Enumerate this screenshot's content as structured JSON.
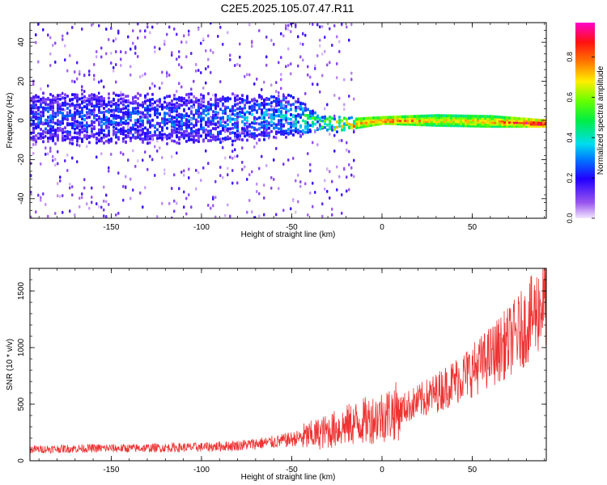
{
  "title": "C2E5.2025.105.07.47.R11",
  "chart_data": [
    {
      "type": "heatmap",
      "xlabel": "Height of straight line (km)",
      "ylabel": "Frequency (Hz)",
      "xlim": [
        -195,
        91
      ],
      "ylim": [
        -50,
        50
      ],
      "xticks": [
        -150,
        -100,
        -50,
        0,
        50
      ],
      "yticks": [
        -40,
        -20,
        0,
        20,
        40
      ],
      "colorbar": {
        "label": "Normalized spectral amplitude",
        "range": [
          0,
          0.97
        ],
        "ticks": [
          "0.0",
          "0.2",
          "0.4",
          "0.6",
          "0.8"
        ],
        "colormap": "rainbow (violet → blue → cyan → green → yellow → red → magenta)"
      },
      "description_profile": [
        {
          "height_km": -195,
          "center_hz": 1,
          "band_halfwidth_hz": 12,
          "amplitude": 0.25
        },
        {
          "height_km": -100,
          "center_hz": 1,
          "band_halfwidth_hz": 12,
          "amplitude": 0.28
        },
        {
          "height_km": -50,
          "center_hz": 2,
          "band_halfwidth_hz": 10,
          "amplitude": 0.35
        },
        {
          "height_km": -35,
          "center_hz": -1,
          "band_halfwidth_hz": 4,
          "amplitude": 0.55
        },
        {
          "height_km": -20,
          "center_hz": -2,
          "band_halfwidth_hz": 3,
          "amplitude": 0.7
        },
        {
          "height_km": 0,
          "center_hz": 0,
          "band_halfwidth_hz": 2,
          "amplitude": 0.85
        },
        {
          "height_km": 30,
          "center_hz": 0,
          "band_halfwidth_hz": 3,
          "amplitude": 0.7
        },
        {
          "height_km": 60,
          "center_hz": -0.5,
          "band_halfwidth_hz": 3,
          "amplitude": 0.75
        },
        {
          "height_km": 88,
          "center_hz": -1.5,
          "band_halfwidth_hz": 2,
          "amplitude": 0.95
        }
      ]
    },
    {
      "type": "line",
      "xlabel": "Height of straight line (km)",
      "ylabel": "SNR (10 * v/v)",
      "xlim": [
        -195,
        91
      ],
      "ylim": [
        0,
        1700
      ],
      "xticks": [
        -150,
        -100,
        -50,
        0,
        50
      ],
      "yticks": [
        0,
        500,
        1000,
        1500
      ],
      "series_color": "#ee3333",
      "series": [
        {
          "x": [
            -195,
            -180,
            -160,
            -140,
            -120,
            -100,
            -80,
            -60,
            -50,
            -40,
            -30,
            -20,
            -10,
            0,
            10,
            20,
            30,
            40,
            50,
            60,
            70,
            80,
            90
          ],
          "y": [
            100,
            105,
            110,
            110,
            115,
            120,
            135,
            165,
            190,
            220,
            260,
            310,
            350,
            395,
            450,
            520,
            600,
            700,
            800,
            920,
            1050,
            1200,
            1420
          ]
        }
      ]
    }
  ]
}
